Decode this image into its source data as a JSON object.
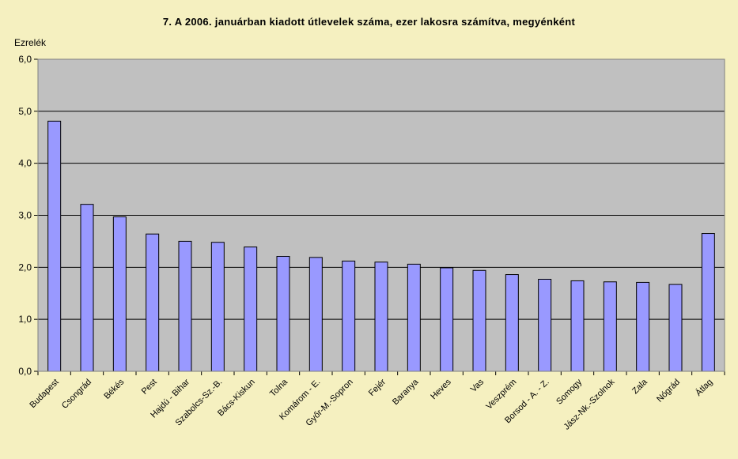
{
  "chart_data": {
    "type": "bar",
    "title": "7. A 2006. januárban kiadott útlevelek száma, ezer lakosra számítva, megyénként",
    "ylabel": "Ezrelék",
    "xlabel": "",
    "ylim": [
      0,
      6
    ],
    "yticks": [
      "0,0",
      "1,0",
      "2,0",
      "3,0",
      "4,0",
      "5,0",
      "6,0"
    ],
    "grid": true,
    "legend": "none",
    "categories": [
      "Budapest",
      "Csongrád",
      "Békés",
      "Pest",
      "Hajdú - Bihar",
      "Szabolcs-Sz.-B.",
      "Bács-Kiskun",
      "Tolna",
      "Komárom - E.",
      "Győr-M.-Sopron",
      "Fejér",
      "Baranya",
      "Heves",
      "Vas",
      "Veszprém",
      "Borsod - A. - Z.",
      "Somogy",
      "Jász-Nk.-Szolnok",
      "Zala",
      "Nógrád",
      "Átlag"
    ],
    "values": [
      4.81,
      3.21,
      2.97,
      2.64,
      2.5,
      2.48,
      2.39,
      2.21,
      2.19,
      2.12,
      2.1,
      2.06,
      1.99,
      1.94,
      1.86,
      1.77,
      1.74,
      1.72,
      1.71,
      1.67,
      2.65
    ],
    "colors": {
      "bar": "#9999ff",
      "bar_border": "#000000",
      "plot_bg": "#c0c0c0",
      "page_bg": "#f5f0c0",
      "grid": "#000000"
    }
  }
}
